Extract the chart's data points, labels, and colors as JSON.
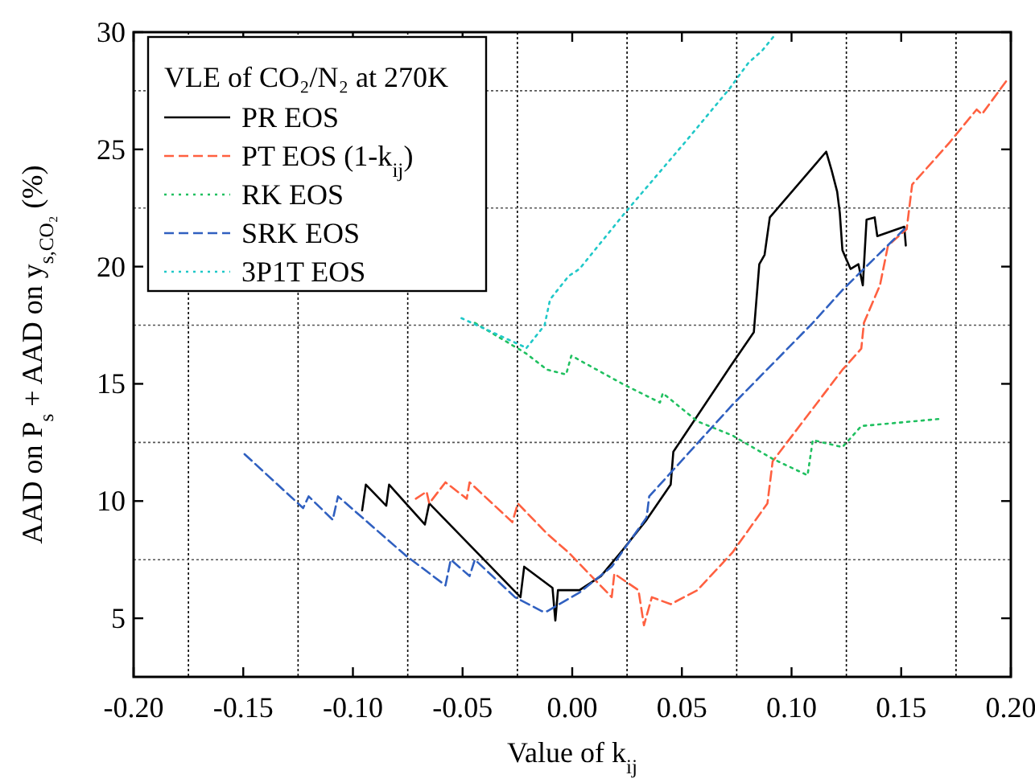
{
  "chart_data": {
    "type": "line",
    "xlabel": "Value of k$_{ij}$",
    "ylabel": "AAD on P$_{s}$ + AAD on y$_{s,CO₂}$ (%)",
    "legend_title": "VLE of CO₂/N₂ at 270K",
    "legend": "top left",
    "grid": true,
    "marker": "none",
    "xlim": [
      -0.2,
      0.2
    ],
    "ylim": [
      2.5,
      30
    ],
    "xticks": [
      {
        "value": -0.2,
        "label": "-0.20"
      },
      {
        "value": -0.175,
        "label": null
      },
      {
        "value": -0.15,
        "label": "-0.15"
      },
      {
        "value": -0.125,
        "label": null
      },
      {
        "value": -0.1,
        "label": "-0.10"
      },
      {
        "value": -0.075,
        "label": null
      },
      {
        "value": -0.05,
        "label": "-0.05"
      },
      {
        "value": -0.025,
        "label": null
      },
      {
        "value": 0,
        "label": "0.00"
      },
      {
        "value": 0.025,
        "label": null
      },
      {
        "value": 0.05,
        "label": "0.05"
      },
      {
        "value": 0.075,
        "label": null
      },
      {
        "value": 0.1,
        "label": "0.10"
      },
      {
        "value": 0.125,
        "label": null
      },
      {
        "value": 0.15,
        "label": "0.15"
      },
      {
        "value": 0.175,
        "label": null
      },
      {
        "value": 0.2,
        "label": "0.20"
      }
    ],
    "yticks": [
      5,
      {
        "value": 7.5,
        "label": null
      },
      10,
      {
        "value": 12.5,
        "label": null
      },
      15,
      {
        "value": 17.5,
        "label": null
      },
      20,
      {
        "value": 22.5,
        "label": null
      },
      25,
      {
        "value": 27.5,
        "label": null
      },
      30
    ],
    "series": [
      {
        "name": "PR EOS",
        "color": "#000000",
        "line_style": "solid",
        "x": [
          -0.0958,
          -0.0941,
          -0.0848,
          -0.0835,
          -0.0672,
          -0.0652,
          -0.0236,
          -0.0219,
          -0.009,
          -0.0077,
          -0.0065,
          0.0033,
          0.0131,
          0.0229,
          0.0339,
          0.0449,
          0.0461,
          0.0718,
          0.0828,
          0.0853,
          0.0877,
          0.0901,
          0.1158,
          0.1183,
          0.1208,
          0.122,
          0.1232,
          0.1269,
          0.1305,
          0.1325,
          0.1342,
          0.1379,
          0.1391,
          0.1514,
          0.1521
        ],
        "values": [
          9.6,
          10.7,
          9.8,
          10.7,
          9,
          9.9,
          5.9,
          7.2,
          6.3,
          4.9,
          6.2,
          6.2,
          6.8,
          7.9,
          9.2,
          10.7,
          12.1,
          15.7,
          17.2,
          20.1,
          20.5,
          22.1,
          24.9,
          24.1,
          23.2,
          22.3,
          20.7,
          19.9,
          20.1,
          19.2,
          22,
          22.1,
          21.3,
          21.7,
          20.9
        ]
      },
      {
        "name": "PT EOS (1-k$_{ij}$)",
        "color": "#ff6040",
        "line_style": "dashed",
        "x": [
          -0.0713,
          -0.0664,
          -0.0652,
          -0.0578,
          -0.0481,
          -0.0468,
          -0.0273,
          -0.0248,
          -0.0114,
          -0.0016,
          0.018,
          0.0192,
          0.0302,
          0.0327,
          0.0363,
          0.0449,
          0.0571,
          0.073,
          0.089,
          0.0914,
          0.1232,
          0.1318,
          0.133,
          0.1403,
          0.144,
          0.1525,
          0.155,
          0.1721,
          0.1844,
          0.1868,
          0.1978
        ],
        "values": [
          10.1,
          10.4,
          9.9,
          10.8,
          10.1,
          10.8,
          9.1,
          9.9,
          8.6,
          7.8,
          5.9,
          6.9,
          6.2,
          4.7,
          5.9,
          5.6,
          6.2,
          7.8,
          9.9,
          11.7,
          15.6,
          16.5,
          17.6,
          19.2,
          20.9,
          21.6,
          23.5,
          25.3,
          26.7,
          26.5,
          27.9
        ]
      },
      {
        "name": "RK EOS",
        "color": "#20c060",
        "line_style": "dotted",
        "x": [
          -0.0444,
          -0.0211,
          -0.0114,
          -0.0028,
          -0.0004,
          0.0229,
          0.04,
          0.0413,
          0.0571,
          0.073,
          0.0914,
          0.1073,
          0.1097,
          0.1232,
          0.1318,
          0.1673
        ],
        "values": [
          17.6,
          16.3,
          15.6,
          15.4,
          16.2,
          15,
          14.2,
          14.6,
          13.4,
          12.8,
          11.8,
          11.1,
          12.6,
          12.3,
          13.2,
          13.5
        ]
      },
      {
        "name": "SRK EOS",
        "color": "#3060c0",
        "line_style": "dashed",
        "x": [
          -0.1494,
          -0.1227,
          -0.1202,
          -0.1092,
          -0.1068,
          -0.0762,
          -0.0578,
          -0.0554,
          -0.0468,
          -0.0444,
          -0.0261,
          -0.0138,
          -0.0114,
          0.0033,
          0.018,
          0.0339,
          0.0351,
          0.073,
          0.1097,
          0.1232,
          0.1514
        ],
        "values": [
          12,
          9.7,
          10.2,
          9.2,
          10.2,
          7.7,
          6.4,
          7.5,
          6.8,
          7.5,
          5.9,
          5.3,
          5.3,
          6.1,
          7.2,
          9.3,
          10.2,
          14.1,
          17.6,
          19,
          21.6
        ]
      },
      {
        "name": "3P1T EOS",
        "color": "#20c8c8",
        "line_style": "dotted",
        "x": [
          -0.0505,
          -0.0224,
          -0.0211,
          -0.0126,
          -0.0101,
          -0.0016,
          0.0033,
          0.0241,
          0.0523,
          0.0718,
          0.0804,
          0.0865,
          0.0926
        ],
        "values": [
          17.8,
          16.6,
          16.5,
          17.5,
          18.6,
          19.6,
          19.9,
          22.3,
          25.4,
          27.6,
          28.7,
          29.2,
          29.9
        ]
      }
    ]
  }
}
